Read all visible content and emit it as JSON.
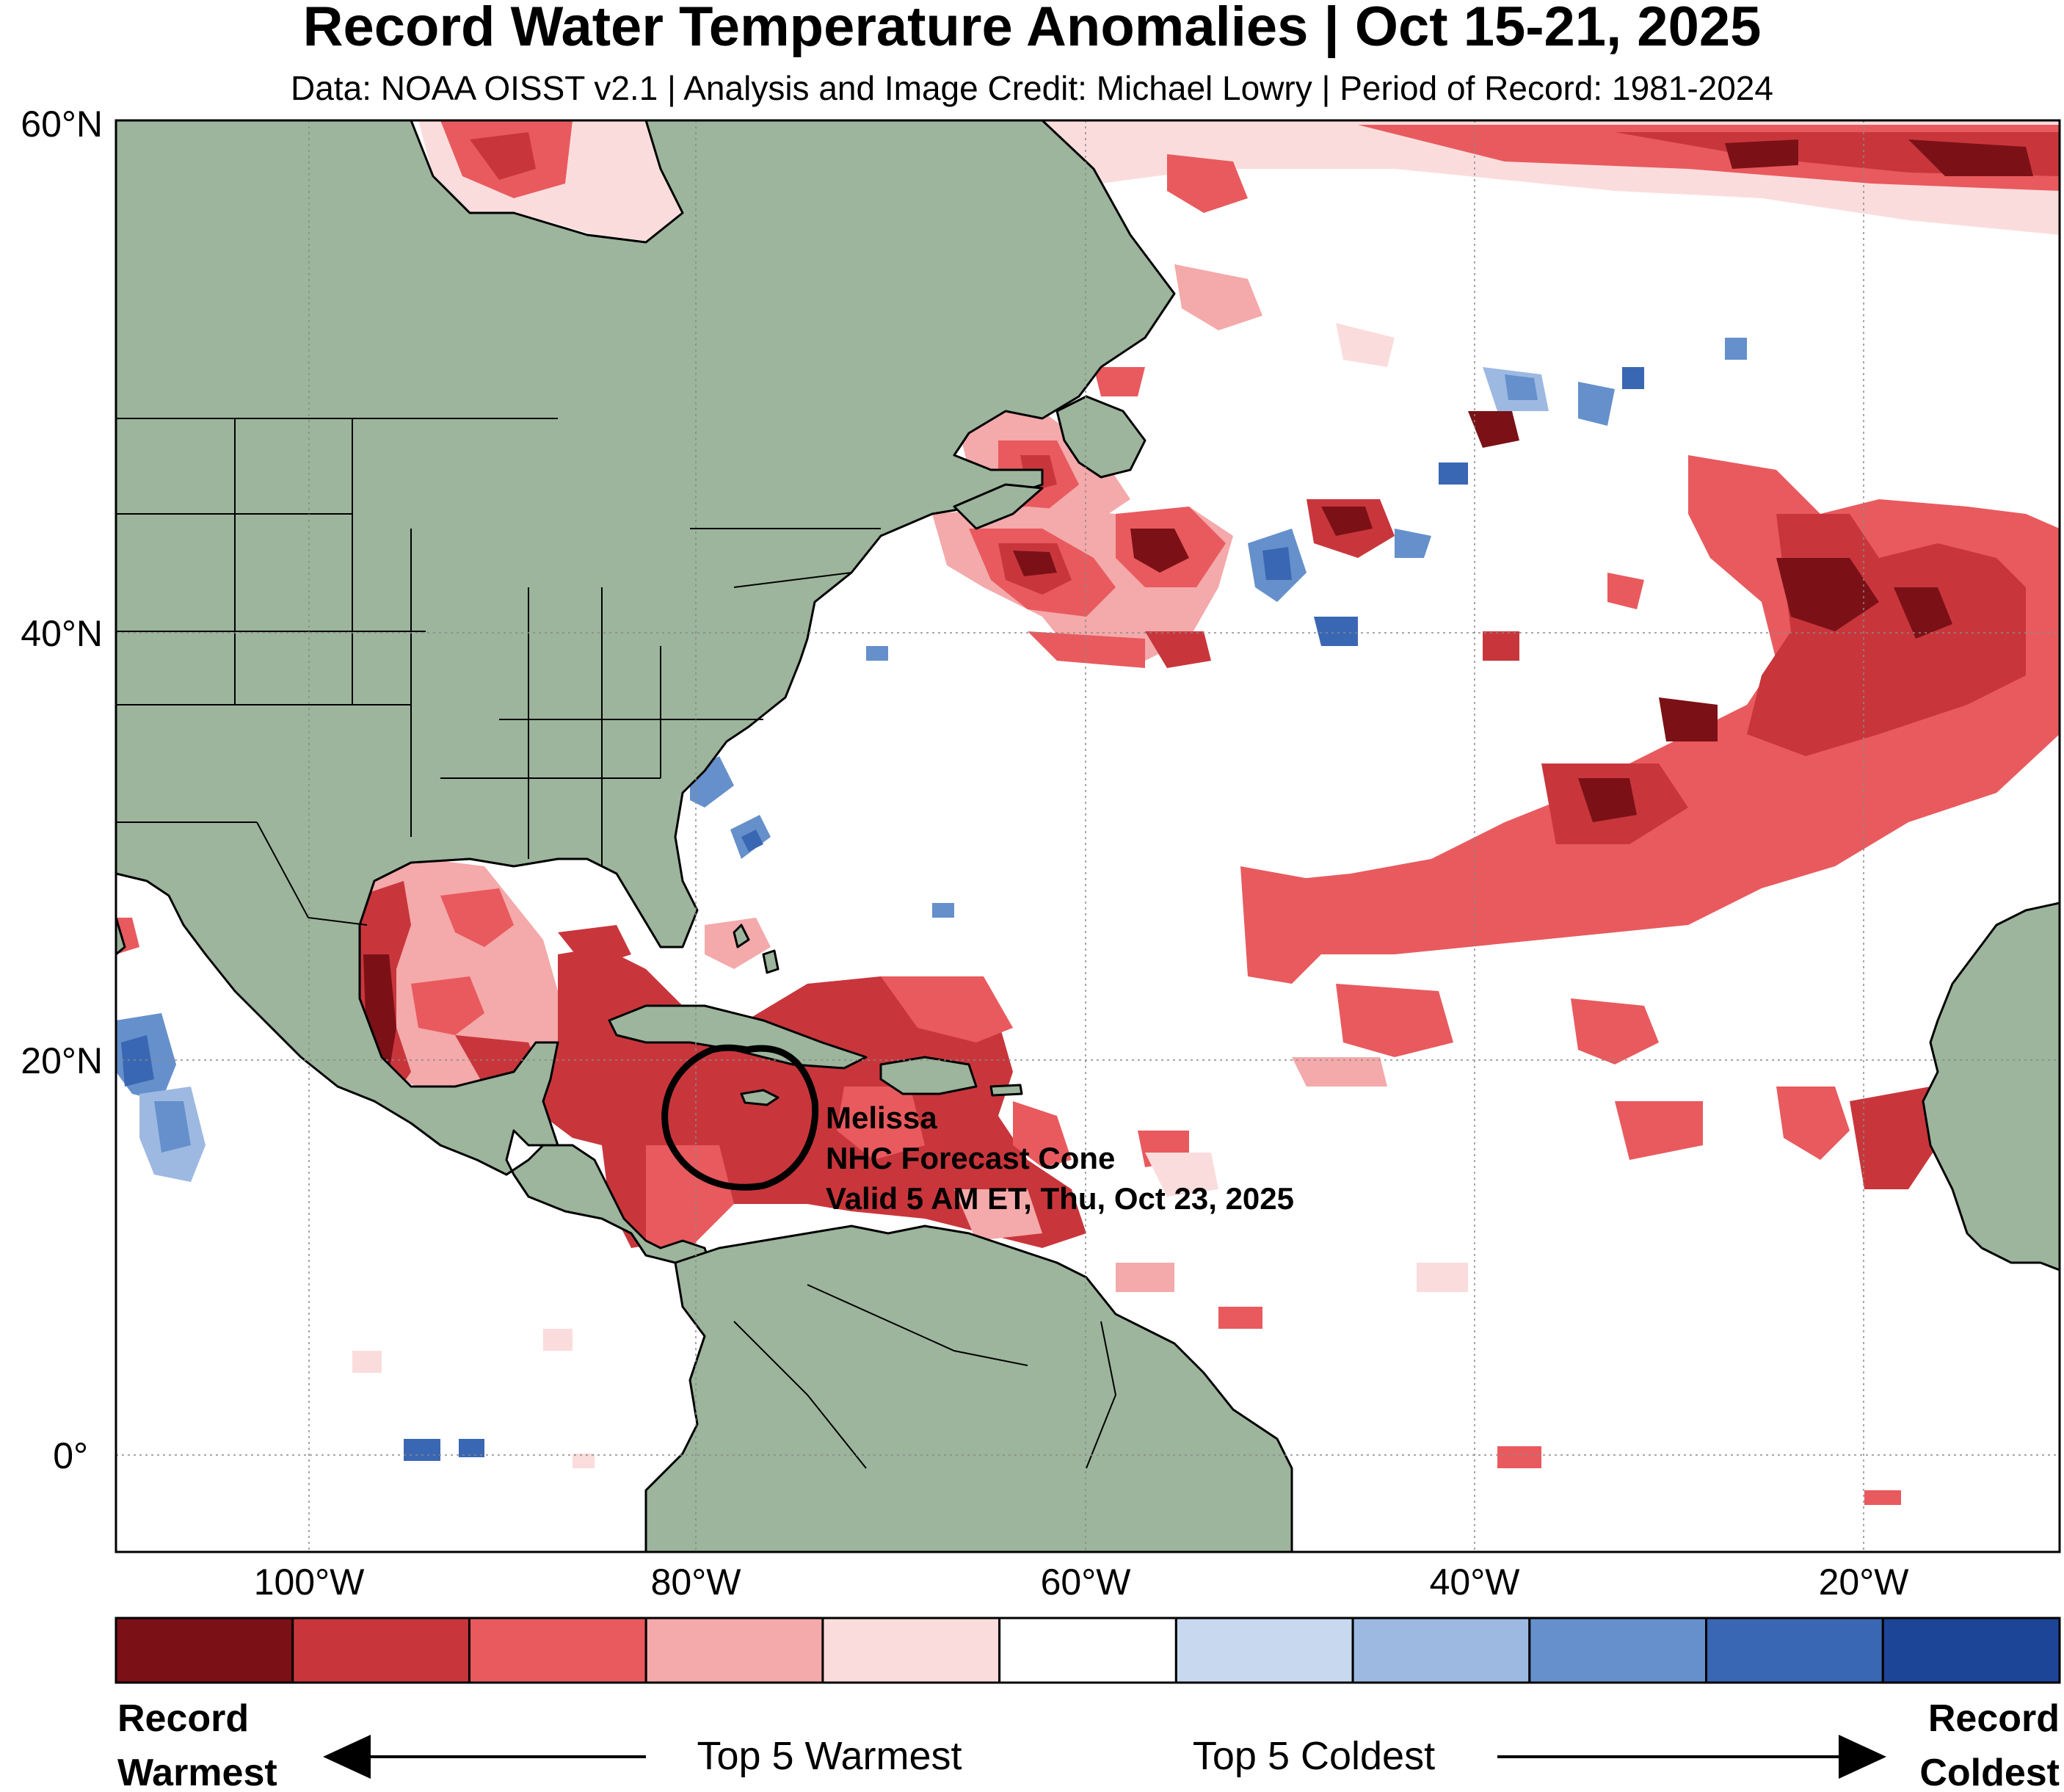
{
  "header": {
    "title": "Record Water Temperature Anomalies | Oct 15-21, 2025",
    "subtitle": "Data: NOAA OISST v2.1 | Analysis and Image Credit: Michael Lowry | Period of Record: 1981-2024"
  },
  "axes": {
    "lat_ticks": [
      {
        "value": 60,
        "label": "60°N"
      },
      {
        "value": 40,
        "label": "40°N"
      },
      {
        "value": 20,
        "label": "20°N"
      },
      {
        "value": 0,
        "label": "0°"
      }
    ],
    "lon_ticks": [
      {
        "value": -100,
        "label": "100°W"
      },
      {
        "value": -80,
        "label": "80°W"
      },
      {
        "value": -60,
        "label": "60°W"
      },
      {
        "value": -40,
        "label": "40°W"
      },
      {
        "value": -20,
        "label": "20°W"
      }
    ],
    "lon_range": [
      -110,
      -10
    ],
    "lat_range": [
      -4.5,
      61
    ]
  },
  "storm": {
    "name": "Melissa",
    "line2": "NHC Forecast Cone",
    "line3": "Valid 5 AM ET, Thu, Oct 23, 2025"
  },
  "legend": {
    "left_label_line1": "Record",
    "left_label_line2": "Warmest",
    "right_label_line1": "Record",
    "right_label_line2": "Coldest",
    "warm_label": "Top 5 Warmest",
    "cold_label": "Top 5 Coldest",
    "colors": [
      "#7b1116",
      "#c8363c",
      "#e85a5e",
      "#f4a9aa",
      "#fbdcdc",
      "#ffffff",
      "#c8d9ef",
      "#9db9e2",
      "#6590cb",
      "#3a67b3",
      "#1d4597"
    ]
  },
  "colors": {
    "land": "#9cb59c",
    "ocean": "#ffffff",
    "border": "#000000"
  }
}
